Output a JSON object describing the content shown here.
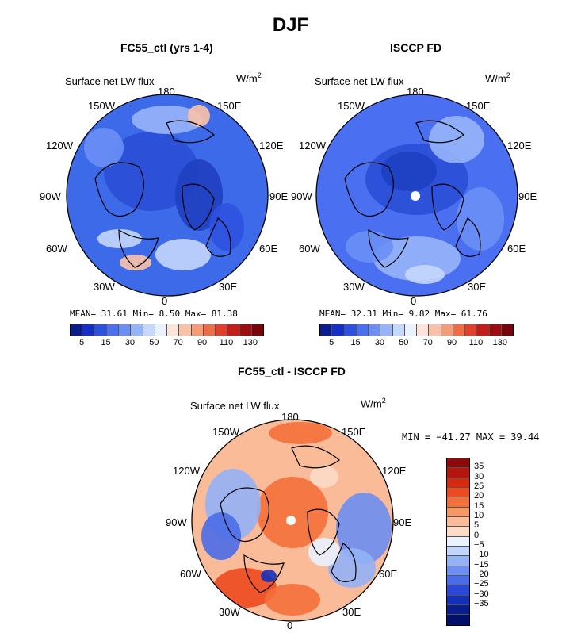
{
  "figure": {
    "season_title": "DJF"
  },
  "panels": {
    "model": {
      "title": "FC55_ctl (yrs 1-4)",
      "variable": "Surface net LW flux",
      "units": "W/m",
      "units_power": "2",
      "stats": "MEAN=  31.61  Min=   8.50  Max=  81.38",
      "colorbar_labels": [
        "5",
        "15",
        "30",
        "50",
        "70",
        "90",
        "110",
        "130"
      ],
      "colorbar_colors": [
        "#0a1d8f",
        "#1530c8",
        "#2d52e0",
        "#4a6ff0",
        "#6c8ff5",
        "#97b4fa",
        "#c4d7fc",
        "#e9f1fe",
        "#fde4d8",
        "#f9c2a8",
        "#f59b76",
        "#ef6c45",
        "#e2402a",
        "#c41e1c",
        "#9c0c10",
        "#780308"
      ]
    },
    "obs": {
      "title": "ISCCP FD",
      "variable": "Surface net LW flux",
      "units": "W/m",
      "units_power": "2",
      "stats": "MEAN=  32.31  Min=   9.82  Max=  61.76",
      "colorbar_labels": [
        "5",
        "15",
        "30",
        "50",
        "70",
        "90",
        "110",
        "130"
      ],
      "colorbar_colors": [
        "#0a1d8f",
        "#1530c8",
        "#2d52e0",
        "#4a6ff0",
        "#6c8ff5",
        "#97b4fa",
        "#c4d7fc",
        "#e9f1fe",
        "#fde4d8",
        "#f9c2a8",
        "#f59b76",
        "#ef6c45",
        "#e2402a",
        "#c41e1c",
        "#9c0c10",
        "#780308"
      ]
    },
    "diff": {
      "title": "FC55_ctl - ISCCP FD",
      "variable": "Surface net LW flux",
      "units": "W/m",
      "units_power": "2",
      "minmax": "MIN = −41.27 MAX =  39.44",
      "colorbar_labels": [
        "35",
        "30",
        "25",
        "20",
        "15",
        "10",
        "5",
        "0",
        "−5",
        "−10",
        "−15",
        "−20",
        "−25",
        "−30",
        "−35"
      ],
      "colorbar_colors": [
        "#8c0a0c",
        "#b3160f",
        "#d42a12",
        "#ec4a1f",
        "#f4703b",
        "#f79766",
        "#f9bb98",
        "#fcdcc6",
        "#eaf2fe",
        "#c2d5fb",
        "#94b3f6",
        "#6c8ff1",
        "#4a6ce8",
        "#2b49d6",
        "#1530b8",
        "#0a1d8f",
        "#02106b"
      ]
    }
  },
  "map_labels": {
    "top": "180",
    "bottom": "0",
    "nw": "150W",
    "ne": "150E",
    "wnw": "120W",
    "ene": "120E",
    "w": "90W",
    "e": "90E",
    "wsw": "60W",
    "ese": "60E",
    "sw": "30W",
    "se": "30E"
  },
  "maps": [
    {
      "name": "model",
      "base": "#3c6ae8",
      "blobs": [
        {
          "dx": -20,
          "dy": -30,
          "rx": 60,
          "ry": 50,
          "c": "#2a4fd6"
        },
        {
          "dx": 40,
          "dy": 0,
          "rx": 30,
          "ry": 45,
          "c": "#1e3fc0"
        },
        {
          "dx": -60,
          "dy": 55,
          "rx": 28,
          "ry": 12,
          "c": "#c4d7fc"
        },
        {
          "dx": -40,
          "dy": 85,
          "rx": 20,
          "ry": 10,
          "c": "#f9c2a8"
        },
        {
          "dx": 20,
          "dy": 75,
          "rx": 35,
          "ry": 20,
          "c": "#c4d7fc"
        },
        {
          "dx": 0,
          "dy": -95,
          "rx": 45,
          "ry": 18,
          "c": "#97b4fa"
        },
        {
          "dx": 40,
          "dy": -100,
          "rx": 14,
          "ry": 14,
          "c": "#f9c2a8"
        },
        {
          "dx": -80,
          "dy": -60,
          "rx": 25,
          "ry": 25,
          "c": "#6c8ff5"
        },
        {
          "dx": 75,
          "dy": 40,
          "rx": 22,
          "ry": 30,
          "c": "#2d52e0"
        }
      ]
    },
    {
      "name": "obs",
      "base": "#4a6ff0",
      "blobs": [
        {
          "dx": 0,
          "dy": -20,
          "rx": 65,
          "ry": 45,
          "c": "#2a4fd6"
        },
        {
          "dx": -10,
          "dy": -30,
          "rx": 35,
          "ry": 25,
          "c": "#1e3fc0"
        },
        {
          "dx": 50,
          "dy": -70,
          "rx": 35,
          "ry": 30,
          "c": "#97b4fa"
        },
        {
          "dx": 80,
          "dy": 30,
          "rx": 30,
          "ry": 40,
          "c": "#6c8ff5"
        },
        {
          "dx": 0,
          "dy": 80,
          "rx": 55,
          "ry": 28,
          "c": "#97b4fa"
        },
        {
          "dx": -60,
          "dy": 65,
          "rx": 30,
          "ry": 20,
          "c": "#6c8ff5"
        },
        {
          "dx": 10,
          "dy": 100,
          "rx": 25,
          "ry": 12,
          "c": "#c4d7fc"
        }
      ]
    },
    {
      "name": "diff",
      "base": "#f9bb98",
      "blobs": [
        {
          "dx": 0,
          "dy": -10,
          "rx": 45,
          "ry": 45,
          "c": "#f4703b"
        },
        {
          "dx": -75,
          "dy": -20,
          "rx": 35,
          "ry": 45,
          "c": "#94b3f6"
        },
        {
          "dx": -90,
          "dy": 20,
          "rx": 25,
          "ry": 30,
          "c": "#4a6ce8"
        },
        {
          "dx": 90,
          "dy": 10,
          "rx": 35,
          "ry": 45,
          "c": "#6c8ff1"
        },
        {
          "dx": 75,
          "dy": 60,
          "rx": 30,
          "ry": 25,
          "c": "#94b3f6"
        },
        {
          "dx": -60,
          "dy": 85,
          "rx": 40,
          "ry": 25,
          "c": "#ec4a1f"
        },
        {
          "dx": 0,
          "dy": 100,
          "rx": 35,
          "ry": 20,
          "c": "#f4703b"
        },
        {
          "dx": 10,
          "dy": -110,
          "rx": 40,
          "ry": 14,
          "c": "#f4703b"
        },
        {
          "dx": -30,
          "dy": 70,
          "rx": 10,
          "ry": 8,
          "c": "#1530b8"
        },
        {
          "dx": 40,
          "dy": 40,
          "rx": 20,
          "ry": 18,
          "c": "#eaf2fe"
        },
        {
          "dx": 40,
          "dy": -55,
          "rx": 18,
          "ry": 14,
          "c": "#fcdcc6"
        }
      ]
    }
  ]
}
